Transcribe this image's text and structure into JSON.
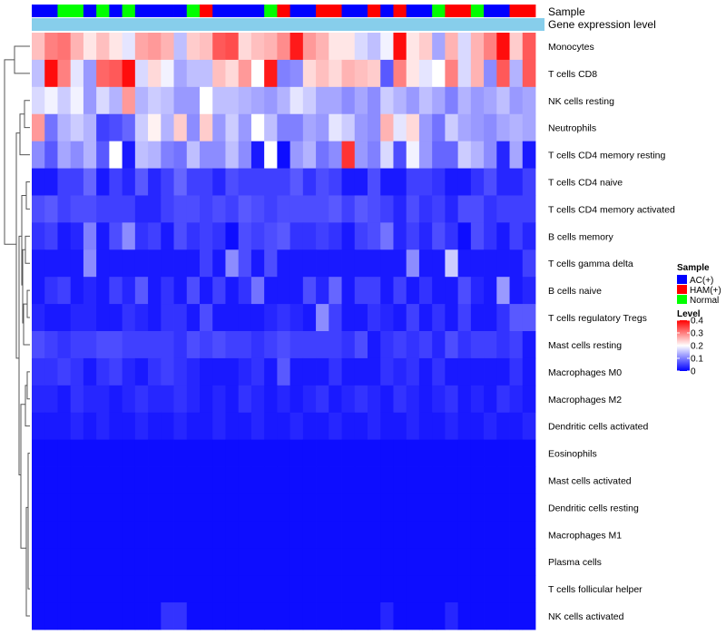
{
  "chart_data": {
    "type": "heatmap",
    "title": "",
    "annotation_tracks": [
      "Sample",
      "Gene expression level"
    ],
    "sample_groups": [
      "AC(+)",
      "AC(+)",
      "Normal",
      "Normal",
      "AC(+)",
      "Normal",
      "AC(+)",
      "Normal",
      "AC(+)",
      "AC(+)",
      "AC(+)",
      "AC(+)",
      "Normal",
      "HAM(+)",
      "AC(+)",
      "AC(+)",
      "AC(+)",
      "AC(+)",
      "Normal",
      "HAM(+)",
      "AC(+)",
      "AC(+)",
      "HAM(+)",
      "HAM(+)",
      "AC(+)",
      "AC(+)",
      "HAM(+)",
      "AC(+)",
      "HAM(+)",
      "AC(+)",
      "AC(+)",
      "Normal",
      "HAM(+)",
      "HAM(+)",
      "Normal",
      "AC(+)",
      "AC(+)",
      "HAM(+)",
      "HAM(+)"
    ],
    "rows": [
      "Monocytes",
      "T cells CD8",
      "NK cells resting",
      "Neutrophils",
      "T cells CD4 memory resting",
      "T cells CD4 naive",
      "T cells CD4 memory activated",
      "B cells memory",
      "T cells gamma delta",
      "B cells naive",
      "T cells regulatory  Tregs",
      "Mast cells resting",
      "Macrophages M0",
      "Macrophages M2",
      "Dendritic cells activated",
      "Eosinophils",
      "Mast cells activated",
      "Dendritic cells resting",
      "Macrophages M1",
      "Plasma cells",
      "T cells follicular helper",
      "NK cells activated"
    ],
    "values": [
      [
        0.25,
        0.3,
        0.31,
        0.26,
        0.22,
        0.25,
        0.22,
        0.18,
        0.27,
        0.28,
        0.26,
        0.15,
        0.24,
        0.25,
        0.33,
        0.34,
        0.23,
        0.25,
        0.26,
        0.29,
        0.38,
        0.28,
        0.26,
        0.22,
        0.22,
        0.17,
        0.15,
        0.19,
        0.39,
        0.22,
        0.24,
        0.13,
        0.26,
        0.17,
        0.26,
        0.3,
        0.39,
        0.24,
        0.33
      ],
      [
        0.15,
        0.39,
        0.3,
        0.18,
        0.12,
        0.32,
        0.33,
        0.39,
        0.17,
        0.23,
        0.19,
        0.13,
        0.15,
        0.15,
        0.25,
        0.23,
        0.28,
        0.2,
        0.38,
        0.1,
        0.11,
        0.23,
        0.25,
        0.23,
        0.26,
        0.25,
        0.24,
        0.07,
        0.3,
        0.22,
        0.18,
        0.2,
        0.3,
        0.17,
        0.26,
        0.11,
        0.33,
        0.14,
        0.33
      ],
      [
        0.17,
        0.19,
        0.16,
        0.19,
        0.12,
        0.17,
        0.14,
        0.28,
        0.14,
        0.16,
        0.15,
        0.12,
        0.12,
        0.2,
        0.15,
        0.15,
        0.14,
        0.13,
        0.12,
        0.14,
        0.18,
        0.16,
        0.13,
        0.13,
        0.11,
        0.13,
        0.11,
        0.16,
        0.14,
        0.12,
        0.15,
        0.13,
        0.1,
        0.14,
        0.12,
        0.13,
        0.15,
        0.12,
        0.13
      ],
      [
        0.28,
        0.09,
        0.14,
        0.16,
        0.14,
        0.05,
        0.06,
        0.08,
        0.16,
        0.21,
        0.14,
        0.24,
        0.11,
        0.24,
        0.12,
        0.16,
        0.12,
        0.2,
        0.15,
        0.1,
        0.1,
        0.13,
        0.12,
        0.18,
        0.16,
        0.12,
        0.11,
        0.26,
        0.18,
        0.23,
        0.12,
        0.09,
        0.16,
        0.13,
        0.12,
        0.11,
        0.13,
        0.14,
        0.13
      ],
      [
        0.11,
        0.07,
        0.13,
        0.11,
        0.14,
        0.07,
        0.2,
        0.02,
        0.15,
        0.14,
        0.1,
        0.09,
        0.15,
        0.11,
        0.11,
        0.15,
        0.11,
        0.02,
        0.2,
        0.01,
        0.12,
        0.14,
        0.09,
        0.11,
        0.36,
        0.12,
        0.1,
        0.17,
        0.06,
        0.19,
        0.12,
        0.08,
        0.08,
        0.16,
        0.14,
        0.11,
        0.03,
        0.13,
        0.02
      ],
      [
        0.02,
        0.02,
        0.05,
        0.05,
        0.08,
        0.02,
        0.05,
        0.03,
        0.07,
        0.03,
        0.05,
        0.08,
        0.05,
        0.05,
        0.03,
        0.06,
        0.05,
        0.05,
        0.05,
        0.05,
        0.07,
        0.04,
        0.06,
        0.05,
        0.02,
        0.02,
        0.06,
        0.02,
        0.02,
        0.05,
        0.05,
        0.04,
        0.02,
        0.02,
        0.04,
        0.06,
        0.03,
        0.03,
        0.05
      ],
      [
        0.06,
        0.07,
        0.05,
        0.06,
        0.06,
        0.05,
        0.05,
        0.05,
        0.03,
        0.03,
        0.05,
        0.06,
        0.06,
        0.05,
        0.06,
        0.05,
        0.07,
        0.06,
        0.05,
        0.06,
        0.06,
        0.06,
        0.06,
        0.07,
        0.05,
        0.07,
        0.06,
        0.05,
        0.03,
        0.06,
        0.04,
        0.05,
        0.03,
        0.06,
        0.06,
        0.04,
        0.05,
        0.05,
        0.05
      ],
      [
        0.04,
        0.05,
        0.02,
        0.03,
        0.1,
        0.02,
        0.06,
        0.11,
        0.04,
        0.05,
        0.02,
        0.06,
        0.04,
        0.05,
        0.04,
        0.01,
        0.06,
        0.05,
        0.06,
        0.07,
        0.04,
        0.04,
        0.05,
        0.04,
        0.02,
        0.05,
        0.06,
        0.09,
        0.03,
        0.05,
        0.03,
        0.06,
        0.04,
        0.01,
        0.06,
        0.04,
        0.02,
        0.05,
        0.03
      ],
      [
        0.02,
        0.02,
        0.02,
        0.02,
        0.11,
        0.02,
        0.02,
        0.02,
        0.02,
        0.02,
        0.02,
        0.02,
        0.02,
        0.05,
        0.02,
        0.11,
        0.06,
        0.02,
        0.06,
        0.02,
        0.02,
        0.02,
        0.02,
        0.02,
        0.02,
        0.02,
        0.02,
        0.02,
        0.02,
        0.11,
        0.02,
        0.02,
        0.16,
        0.02,
        0.02,
        0.02,
        0.02,
        0.02,
        0.05
      ],
      [
        0.02,
        0.04,
        0.05,
        0.02,
        0.03,
        0.02,
        0.05,
        0.03,
        0.07,
        0.02,
        0.04,
        0.02,
        0.06,
        0.02,
        0.05,
        0.02,
        0.04,
        0.09,
        0.02,
        0.02,
        0.02,
        0.06,
        0.03,
        0.08,
        0.02,
        0.05,
        0.05,
        0.02,
        0.05,
        0.02,
        0.04,
        0.02,
        0.02,
        0.06,
        0.03,
        0.02,
        0.12,
        0.02,
        0.03
      ],
      [
        0.03,
        0.02,
        0.02,
        0.03,
        0.03,
        0.02,
        0.02,
        0.04,
        0.03,
        0.02,
        0.04,
        0.04,
        0.02,
        0.06,
        0.02,
        0.02,
        0.02,
        0.02,
        0.03,
        0.04,
        0.03,
        0.02,
        0.11,
        0.05,
        0.02,
        0.02,
        0.04,
        0.03,
        0.02,
        0.05,
        0.02,
        0.04,
        0.02,
        0.05,
        0.02,
        0.02,
        0.04,
        0.07,
        0.07
      ],
      [
        0.06,
        0.05,
        0.04,
        0.05,
        0.05,
        0.06,
        0.06,
        0.05,
        0.05,
        0.05,
        0.05,
        0.04,
        0.06,
        0.05,
        0.06,
        0.05,
        0.05,
        0.04,
        0.05,
        0.06,
        0.05,
        0.05,
        0.05,
        0.05,
        0.04,
        0.06,
        0.02,
        0.04,
        0.05,
        0.04,
        0.05,
        0.03,
        0.06,
        0.04,
        0.05,
        0.05,
        0.04,
        0.05,
        0.02
      ],
      [
        0.04,
        0.04,
        0.05,
        0.04,
        0.02,
        0.04,
        0.05,
        0.03,
        0.02,
        0.04,
        0.05,
        0.04,
        0.03,
        0.02,
        0.02,
        0.02,
        0.03,
        0.04,
        0.02,
        0.07,
        0.02,
        0.02,
        0.02,
        0.04,
        0.02,
        0.02,
        0.02,
        0.04,
        0.03,
        0.04,
        0.02,
        0.04,
        0.02,
        0.02,
        0.02,
        0.02,
        0.02,
        0.04,
        0.02
      ],
      [
        0.03,
        0.03,
        0.02,
        0.04,
        0.03,
        0.03,
        0.02,
        0.03,
        0.04,
        0.03,
        0.03,
        0.04,
        0.03,
        0.02,
        0.03,
        0.02,
        0.04,
        0.03,
        0.02,
        0.03,
        0.02,
        0.03,
        0.04,
        0.02,
        0.03,
        0.04,
        0.03,
        0.02,
        0.04,
        0.03,
        0.02,
        0.03,
        0.04,
        0.02,
        0.03,
        0.02,
        0.04,
        0.03,
        0.02
      ],
      [
        0.02,
        0.02,
        0.02,
        0.03,
        0.02,
        0.03,
        0.02,
        0.02,
        0.03,
        0.02,
        0.02,
        0.03,
        0.02,
        0.02,
        0.03,
        0.02,
        0.02,
        0.03,
        0.02,
        0.02,
        0.03,
        0.02,
        0.02,
        0.03,
        0.02,
        0.02,
        0.03,
        0.02,
        0.02,
        0.03,
        0.02,
        0.02,
        0.03,
        0.02,
        0.02,
        0.03,
        0.02,
        0.02,
        0.03
      ],
      [
        0.01,
        0.01,
        0.01,
        0.01,
        0.01,
        0.01,
        0.01,
        0.01,
        0.01,
        0.01,
        0.01,
        0.01,
        0.01,
        0.01,
        0.01,
        0.01,
        0.01,
        0.01,
        0.01,
        0.01,
        0.01,
        0.01,
        0.01,
        0.01,
        0.01,
        0.01,
        0.01,
        0.01,
        0.01,
        0.01,
        0.01,
        0.01,
        0.01,
        0.01,
        0.01,
        0.01,
        0.01,
        0.01,
        0.01
      ],
      [
        0.01,
        0.01,
        0.01,
        0.01,
        0.01,
        0.01,
        0.01,
        0.01,
        0.01,
        0.01,
        0.01,
        0.01,
        0.01,
        0.01,
        0.01,
        0.01,
        0.01,
        0.01,
        0.01,
        0.01,
        0.01,
        0.01,
        0.01,
        0.01,
        0.01,
        0.01,
        0.01,
        0.01,
        0.01,
        0.01,
        0.01,
        0.01,
        0.01,
        0.01,
        0.01,
        0.01,
        0.01,
        0.01,
        0.01
      ],
      [
        0.01,
        0.01,
        0.01,
        0.01,
        0.01,
        0.01,
        0.01,
        0.01,
        0.01,
        0.01,
        0.01,
        0.01,
        0.01,
        0.01,
        0.01,
        0.01,
        0.01,
        0.01,
        0.01,
        0.01,
        0.01,
        0.01,
        0.01,
        0.01,
        0.01,
        0.01,
        0.01,
        0.01,
        0.01,
        0.01,
        0.01,
        0.01,
        0.01,
        0.01,
        0.01,
        0.01,
        0.01,
        0.01,
        0.01
      ],
      [
        0.01,
        0.01,
        0.01,
        0.01,
        0.01,
        0.01,
        0.01,
        0.01,
        0.01,
        0.01,
        0.01,
        0.01,
        0.01,
        0.01,
        0.01,
        0.01,
        0.01,
        0.01,
        0.01,
        0.01,
        0.01,
        0.01,
        0.01,
        0.01,
        0.01,
        0.01,
        0.01,
        0.01,
        0.01,
        0.01,
        0.01,
        0.01,
        0.01,
        0.01,
        0.01,
        0.01,
        0.01,
        0.01,
        0.01
      ],
      [
        0.01,
        0.01,
        0.01,
        0.01,
        0.01,
        0.01,
        0.01,
        0.01,
        0.01,
        0.01,
        0.01,
        0.01,
        0.01,
        0.01,
        0.01,
        0.01,
        0.01,
        0.01,
        0.01,
        0.01,
        0.01,
        0.01,
        0.01,
        0.01,
        0.01,
        0.01,
        0.01,
        0.01,
        0.01,
        0.01,
        0.01,
        0.01,
        0.01,
        0.01,
        0.01,
        0.01,
        0.01,
        0.01,
        0.01
      ],
      [
        0.01,
        0.01,
        0.01,
        0.01,
        0.01,
        0.01,
        0.01,
        0.01,
        0.01,
        0.01,
        0.01,
        0.01,
        0.01,
        0.01,
        0.01,
        0.01,
        0.01,
        0.01,
        0.01,
        0.01,
        0.01,
        0.01,
        0.01,
        0.01,
        0.01,
        0.01,
        0.01,
        0.01,
        0.01,
        0.01,
        0.01,
        0.01,
        0.01,
        0.01,
        0.01,
        0.01,
        0.01,
        0.01,
        0.01
      ],
      [
        0.01,
        0.01,
        0.01,
        0.01,
        0.01,
        0.01,
        0.01,
        0.01,
        0.01,
        0.01,
        0.04,
        0.04,
        0.01,
        0.01,
        0.01,
        0.01,
        0.01,
        0.01,
        0.01,
        0.01,
        0.01,
        0.01,
        0.01,
        0.01,
        0.01,
        0.01,
        0.01,
        0.03,
        0.01,
        0.01,
        0.01,
        0.01,
        0.03,
        0.01,
        0.01,
        0.01,
        0.01,
        0.01,
        0.01
      ]
    ],
    "color_scale": {
      "title": "Level",
      "ticks": [
        "0.4",
        "0.3",
        "0.2",
        "0.1",
        "0"
      ],
      "min": 0,
      "max": 0.4,
      "low_color": "#0000ff",
      "mid_color": "#ffffff",
      "high_color": "#ff0000"
    },
    "sample_legend": {
      "title": "Sample",
      "entries": [
        {
          "label": "AC(+)",
          "color": "#0000ff"
        },
        {
          "label": "HAM(+)",
          "color": "#ff0000"
        },
        {
          "label": "Normal",
          "color": "#00ff00"
        }
      ]
    },
    "gene_expression_color": "#87ceeb"
  }
}
